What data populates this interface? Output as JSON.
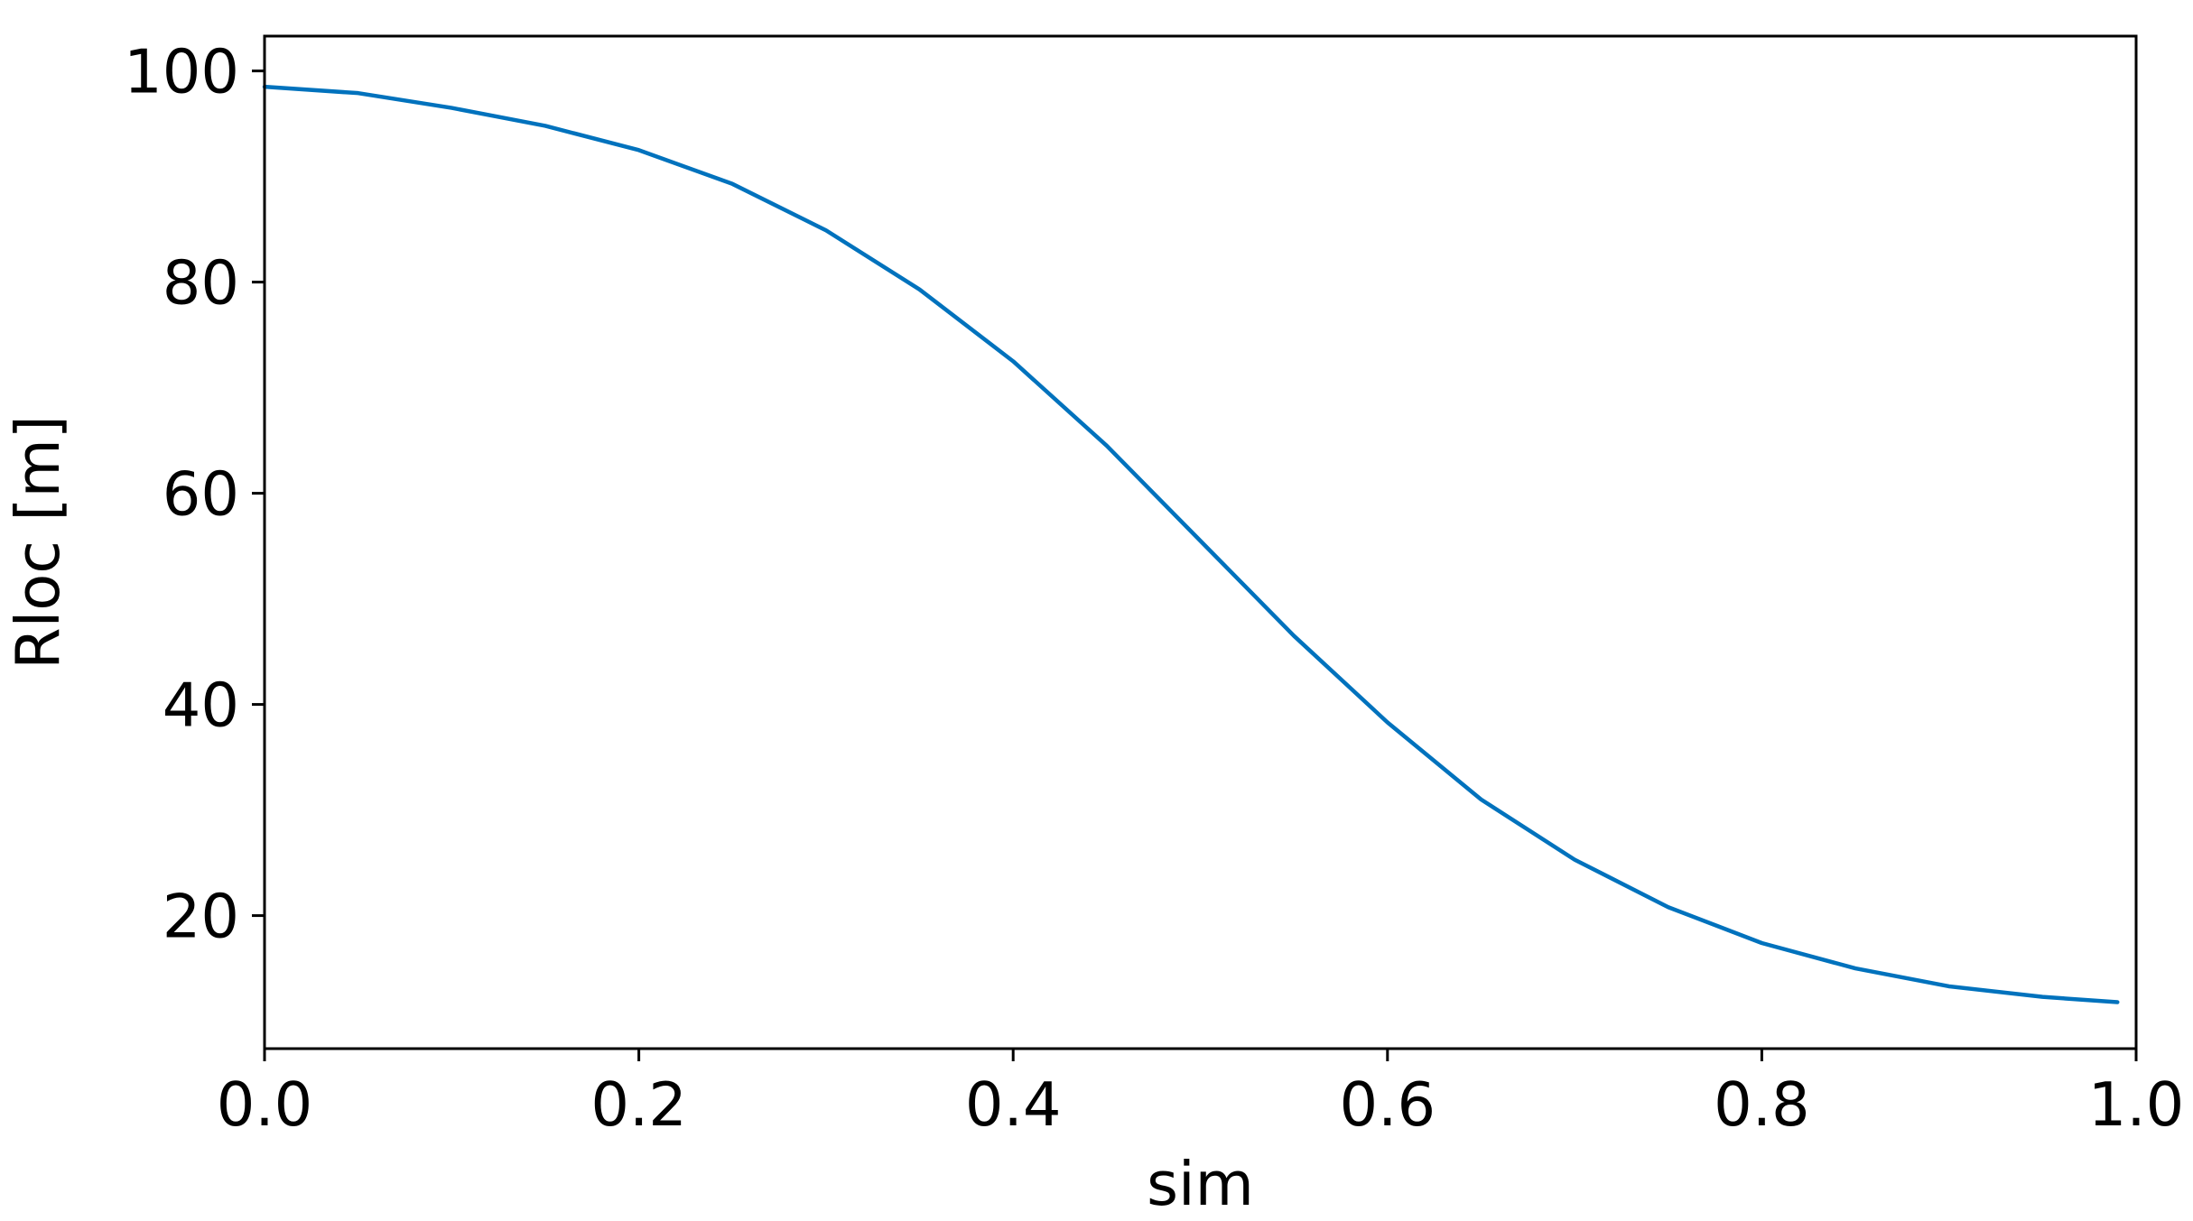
{
  "chart_data": {
    "type": "line",
    "title": "",
    "xlabel": "sim",
    "ylabel": "Rloc [m]",
    "xlim": [
      0.0,
      1.0
    ],
    "ylim": [
      7.4,
      103.3
    ],
    "grid": false,
    "x_ticks": [
      "0.0",
      "0.2",
      "0.4",
      "0.6",
      "0.8",
      "1.0"
    ],
    "y_ticks": [
      "20",
      "40",
      "60",
      "80",
      "100"
    ],
    "series": [
      {
        "color": "#0072BD",
        "x": [
          0.0,
          0.05,
          0.1,
          0.15,
          0.2,
          0.25,
          0.3,
          0.35,
          0.4,
          0.45,
          0.5,
          0.55,
          0.6,
          0.65,
          0.7,
          0.75,
          0.8,
          0.85,
          0.9,
          0.95,
          0.99
        ],
        "y": [
          98.5,
          97.9,
          96.5,
          94.8,
          92.5,
          89.3,
          84.9,
          79.3,
          72.5,
          64.5,
          55.5,
          46.5,
          38.3,
          31.0,
          25.3,
          20.8,
          17.4,
          15.0,
          13.3,
          12.3,
          11.8
        ]
      }
    ]
  }
}
